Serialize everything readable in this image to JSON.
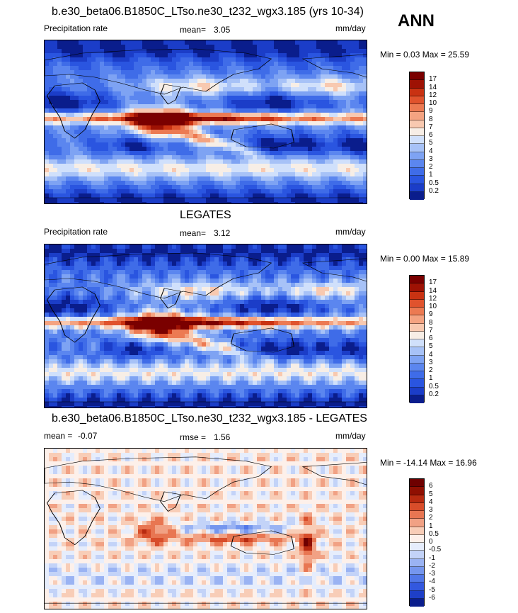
{
  "season": "ANN",
  "panels": [
    {
      "title": "b.e30_beta06.B1850C_LTso.ne30_t232_wgx3.185 (yrs 10-34)",
      "left_label": "Precipitation rate",
      "stat_label": "mean=",
      "stat_value": "3.05",
      "stat2_label": "",
      "stat2_value": "",
      "units": "mm/day",
      "minmax": "Min =   0.03 Max =  25.59",
      "levels": [
        "0.2",
        "0.5",
        "1",
        "2",
        "3",
        "4",
        "5",
        "6",
        "7",
        "8",
        "9",
        "10",
        "12",
        "14",
        "17"
      ]
    },
    {
      "title": "LEGATES",
      "left_label": "Precipitation rate",
      "stat_label": "mean=",
      "stat_value": "3.12",
      "stat2_label": "",
      "stat2_value": "",
      "units": "mm/day",
      "minmax": "Min =   0.00 Max =  15.89",
      "levels": [
        "0.2",
        "0.5",
        "1",
        "2",
        "3",
        "4",
        "5",
        "6",
        "7",
        "8",
        "9",
        "10",
        "12",
        "14",
        "17"
      ]
    },
    {
      "title": "b.e30_beta06.B1850C_LTso.ne30_t232_wgx3.185 - LEGATES",
      "left_label": "mean =",
      "left_value": "-0.07",
      "stat_label": "rmse =",
      "stat_value": "1.56",
      "units": "mm/day",
      "minmax": "Min = -14.14 Max =  16.96",
      "levels": [
        "-6",
        "-5",
        "-4",
        "-3",
        "-2",
        "-1",
        "-0.5",
        "0",
        "0.5",
        "1",
        "2",
        "3",
        "4",
        "5",
        "6"
      ]
    }
  ],
  "colors": {
    "abs_scale": [
      "#0a1d8c",
      "#1b3dc8",
      "#2a55e0",
      "#3f6ce8",
      "#5b86ef",
      "#7ea3f3",
      "#a7c2f7",
      "#d0e0fb",
      "#f7eee6",
      "#f8c9b0",
      "#f4a381",
      "#ec7a52",
      "#e0532d",
      "#c93212",
      "#9e1204",
      "#7a0000"
    ],
    "diff_scale": [
      "#0a1d8c",
      "#1e3fc7",
      "#3358df",
      "#5177e8",
      "#7596ee",
      "#9ab3f3",
      "#c3d3f8",
      "#e6edfc",
      "#fdf0ea",
      "#f8cdb7",
      "#f1a184",
      "#e87652",
      "#d84d2a",
      "#b72a10",
      "#8f0f02",
      "#6e0000"
    ]
  },
  "chart_data": [
    {
      "type": "heatmap",
      "title": "b.e30_beta06.B1850C_LTso.ne30_t232_wgx3.185 (yrs 10-34)",
      "variable": "Precipitation rate",
      "units": "mm/day",
      "season": "ANN",
      "mean": 3.05,
      "min": 0.03,
      "max": 25.59,
      "contour_levels": [
        0.2,
        0.5,
        1,
        2,
        3,
        4,
        5,
        6,
        7,
        8,
        9,
        10,
        12,
        14,
        17
      ]
    },
    {
      "type": "heatmap",
      "title": "LEGATES",
      "variable": "Precipitation rate",
      "units": "mm/day",
      "mean": 3.12,
      "min": 0.0,
      "max": 15.89,
      "contour_levels": [
        0.2,
        0.5,
        1,
        2,
        3,
        4,
        5,
        6,
        7,
        8,
        9,
        10,
        12,
        14,
        17
      ]
    },
    {
      "type": "heatmap",
      "title": "b.e30_beta06.B1850C_LTso.ne30_t232_wgx3.185 - LEGATES",
      "units": "mm/day",
      "mean": -0.07,
      "rmse": 1.56,
      "min": -14.14,
      "max": 16.96,
      "contour_levels": [
        -6,
        -5,
        -4,
        -3,
        -2,
        -1,
        -0.5,
        0,
        0.5,
        1,
        2,
        3,
        4,
        5,
        6
      ]
    }
  ]
}
